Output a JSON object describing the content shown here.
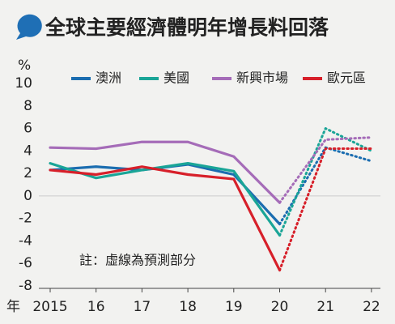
{
  "chart_data": {
    "type": "line",
    "title": "全球主要經濟體明年增長料回落",
    "y_unit": "%",
    "x_label": "年",
    "note": "註：虛線為預測部分",
    "forecast_from": "20",
    "categories": [
      "2015",
      "16",
      "17",
      "18",
      "19",
      "20",
      "21",
      "22"
    ],
    "series": [
      {
        "name": "澳洲",
        "color": "#1b6db0",
        "values": [
          2.3,
          2.6,
          2.3,
          2.8,
          1.9,
          -2.5,
          4.3,
          3.1
        ]
      },
      {
        "name": "美國",
        "color": "#1aa597",
        "values": [
          2.9,
          1.6,
          2.3,
          2.9,
          2.2,
          -3.5,
          6.0,
          4.0
        ]
      },
      {
        "name": "新興市場",
        "color": "#a56cb8",
        "values": [
          4.3,
          4.2,
          4.8,
          4.8,
          3.5,
          -0.6,
          5.0,
          5.2
        ]
      },
      {
        "name": "歐元區",
        "color": "#d7202a",
        "values": [
          2.3,
          1.9,
          2.6,
          1.9,
          1.5,
          -6.6,
          4.2,
          4.2
        ]
      }
    ],
    "ylim": [
      -8,
      10
    ],
    "yticks": [
      -8,
      -6,
      -4,
      -2,
      0,
      2,
      4,
      6,
      8,
      10
    ],
    "grid": false
  }
}
